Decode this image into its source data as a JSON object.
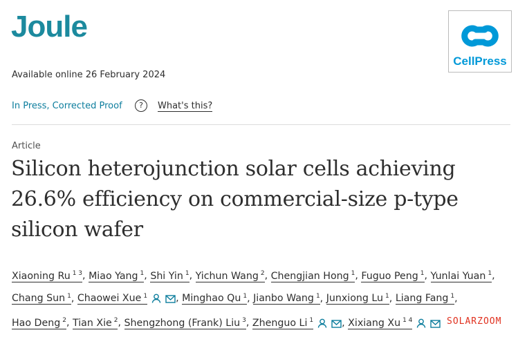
{
  "journal": "Joule",
  "logo": "CellPress",
  "availability": "Available online 26 February 2024",
  "status": "In Press, Corrected Proof",
  "help_icon": "?",
  "help_link": "What's this?",
  "article_type": "Article",
  "title": "Silicon heterojunction solar cells achieving 26.6% efficiency on commercial-size p-type silicon wafer",
  "separator": ",",
  "authors": [
    {
      "name": "Xiaoning Ru",
      "affiliations": "1 3"
    },
    {
      "name": "Miao Yang",
      "affiliations": "1"
    },
    {
      "name": "Shi Yin",
      "affiliations": "1"
    },
    {
      "name": "Yichun Wang",
      "affiliations": "2"
    },
    {
      "name": "Chengjian Hong",
      "affiliations": "1"
    },
    {
      "name": "Fuguo Peng",
      "affiliations": "1"
    },
    {
      "name": "Yunlai Yuan",
      "affiliations": "1"
    },
    {
      "name": "Chang Sun",
      "affiliations": "1"
    },
    {
      "name": "Chaowei Xue",
      "affiliations": "1",
      "corresponding": true
    },
    {
      "name": "Minghao Qu",
      "affiliations": "1"
    },
    {
      "name": "Jianbo Wang",
      "affiliations": "1"
    },
    {
      "name": "Junxiong Lu",
      "affiliations": "1"
    },
    {
      "name": "Liang Fang",
      "affiliations": "1"
    },
    {
      "name": "Hao Deng",
      "affiliations": "2"
    },
    {
      "name": "Tian Xie",
      "affiliations": "2"
    },
    {
      "name": "Shengzhong (Frank) Liu",
      "affiliations": "3"
    },
    {
      "name": "Zhenguo Li",
      "affiliations": "1",
      "corresponding": true
    },
    {
      "name": "Xixiang Xu",
      "affiliations": "1 4",
      "corresponding": true
    }
  ],
  "watermark": "SOLARZOOM"
}
